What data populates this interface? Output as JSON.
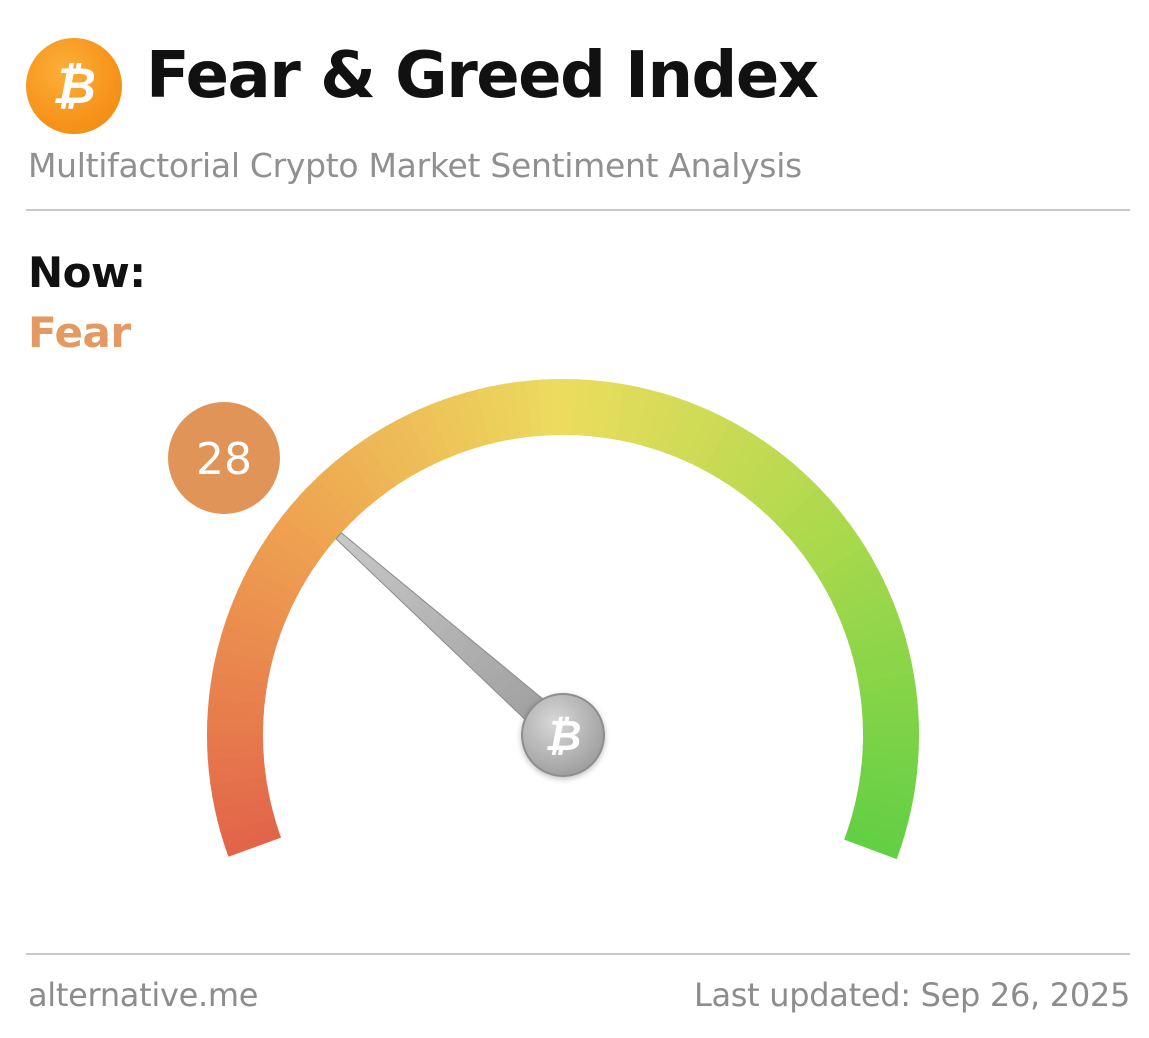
{
  "header": {
    "logo_icon": "bitcoin-icon",
    "logo_glyph": "₿",
    "title": "Fear & Greed Index",
    "subtitle": "Multifactorial Crypto Market Sentiment Analysis"
  },
  "now": {
    "label": "Now:",
    "classification": "Fear",
    "classification_color": "#e29a62"
  },
  "gauge": {
    "value": "28",
    "value_number": 28,
    "min": 0,
    "max": 100,
    "badge_color": "#e09457",
    "hub_icon": "bitcoin-icon",
    "hub_glyph": "₿",
    "colors": {
      "low": "#e2654a",
      "fear": "#eea050",
      "neutral": "#ecdc5e",
      "greed": "#a9d94c",
      "high": "#63cf44"
    }
  },
  "footer": {
    "source": "alternative.me",
    "updated": "Last updated: Sep 26, 2025"
  }
}
